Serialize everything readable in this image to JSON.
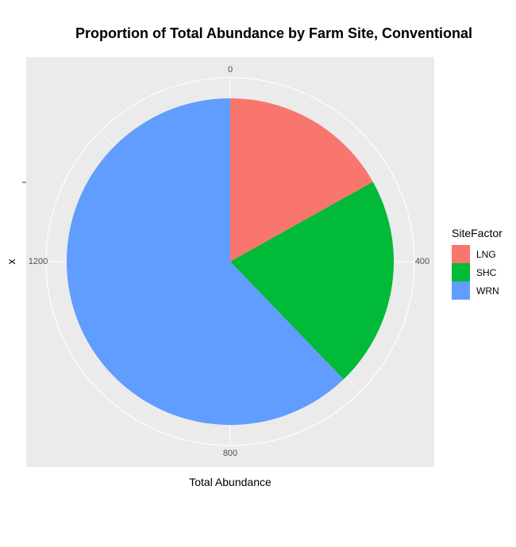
{
  "chart_data": {
    "type": "pie",
    "title": "Proportion of Total Abundance by Farm Site, Conventional",
    "xlabel": "Total Abundance",
    "ylabel": "x",
    "theta_ticks": [
      0,
      400,
      800,
      1200
    ],
    "total": 1600,
    "legend_title": "SiteFactor",
    "legend_position": "right",
    "grid": true,
    "slices": [
      {
        "name": "LNG",
        "value": 270,
        "color": "#F8766D"
      },
      {
        "name": "SHC",
        "value": 335,
        "color": "#00BA38"
      },
      {
        "name": "WRN",
        "value": 995,
        "color": "#619CFF"
      }
    ]
  }
}
